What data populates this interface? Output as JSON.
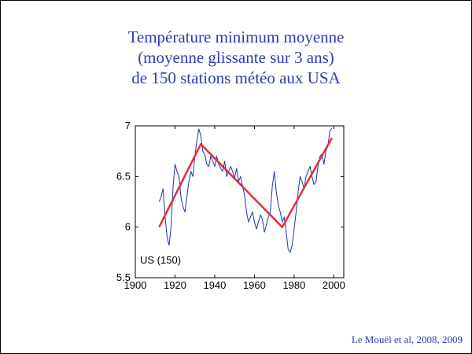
{
  "slide": {
    "title_lines": [
      "Température minimum moyenne",
      "(moyenne glissante sur 3 ans)",
      "de 150 stations météo aux USA"
    ],
    "citation": "Le Mouël et al, 2008, 2009",
    "title_color": "#2f3bb3"
  },
  "chart_data": {
    "type": "line",
    "title": "",
    "xlabel": "",
    "ylabel": "",
    "xlim": [
      1900,
      2005
    ],
    "ylim": [
      5.5,
      7.0
    ],
    "xticks": [
      1900,
      1920,
      1940,
      1960,
      1980,
      2000
    ],
    "yticks": [
      5.5,
      6,
      6.5,
      7
    ],
    "xtick_labels": [
      "1900",
      "1920",
      "1940",
      "1960",
      "1980",
      "2000"
    ],
    "ytick_labels": [
      "5.5",
      "6",
      "6.5",
      "7"
    ],
    "grid": false,
    "annotation": "US (150)",
    "series": [
      {
        "color": "#1f2fbf",
        "x": [
          1912,
          1913,
          1914,
          1915,
          1916,
          1917,
          1918,
          1919,
          1920,
          1921,
          1922,
          1923,
          1924,
          1925,
          1926,
          1927,
          1928,
          1929,
          1930,
          1931,
          1932,
          1933,
          1934,
          1935,
          1936,
          1937,
          1938,
          1939,
          1940,
          1941,
          1942,
          1943,
          1944,
          1945,
          1946,
          1947,
          1948,
          1949,
          1950,
          1951,
          1952,
          1953,
          1954,
          1955,
          1956,
          1957,
          1958,
          1959,
          1960,
          1961,
          1962,
          1963,
          1964,
          1965,
          1966,
          1967,
          1968,
          1969,
          1970,
          1971,
          1972,
          1973,
          1974,
          1975,
          1976,
          1977,
          1978,
          1979,
          1980,
          1981,
          1982,
          1983,
          1984,
          1985,
          1986,
          1987,
          1988,
          1989,
          1990,
          1991,
          1992,
          1993,
          1994,
          1995,
          1996,
          1997,
          1998,
          1999
        ],
        "values": [
          6.25,
          6.3,
          6.38,
          6.1,
          5.9,
          5.82,
          6.0,
          6.4,
          6.62,
          6.55,
          6.5,
          6.3,
          6.2,
          6.15,
          6.3,
          6.45,
          6.55,
          6.5,
          6.7,
          6.85,
          6.97,
          6.9,
          6.75,
          6.72,
          6.62,
          6.6,
          6.7,
          6.65,
          6.6,
          6.7,
          6.62,
          6.58,
          6.55,
          6.65,
          6.5,
          6.55,
          6.6,
          6.55,
          6.48,
          6.58,
          6.45,
          6.5,
          6.4,
          6.32,
          6.15,
          6.05,
          6.1,
          6.15,
          6.05,
          5.98,
          6.05,
          6.12,
          6.08,
          5.95,
          6.02,
          6.1,
          6.15,
          6.4,
          6.55,
          6.35,
          6.22,
          6.15,
          6.05,
          6.1,
          5.95,
          5.78,
          5.75,
          5.82,
          5.98,
          6.15,
          6.35,
          6.5,
          6.45,
          6.38,
          6.5,
          6.55,
          6.6,
          6.5,
          6.42,
          6.45,
          6.6,
          6.7,
          6.72,
          6.62,
          6.75,
          6.8,
          6.95,
          6.98
        ]
      },
      {
        "color": "#e03030",
        "x": [
          1912,
          1933,
          1974,
          1999
        ],
        "values": [
          6.0,
          6.82,
          6.0,
          6.88
        ]
      }
    ]
  }
}
